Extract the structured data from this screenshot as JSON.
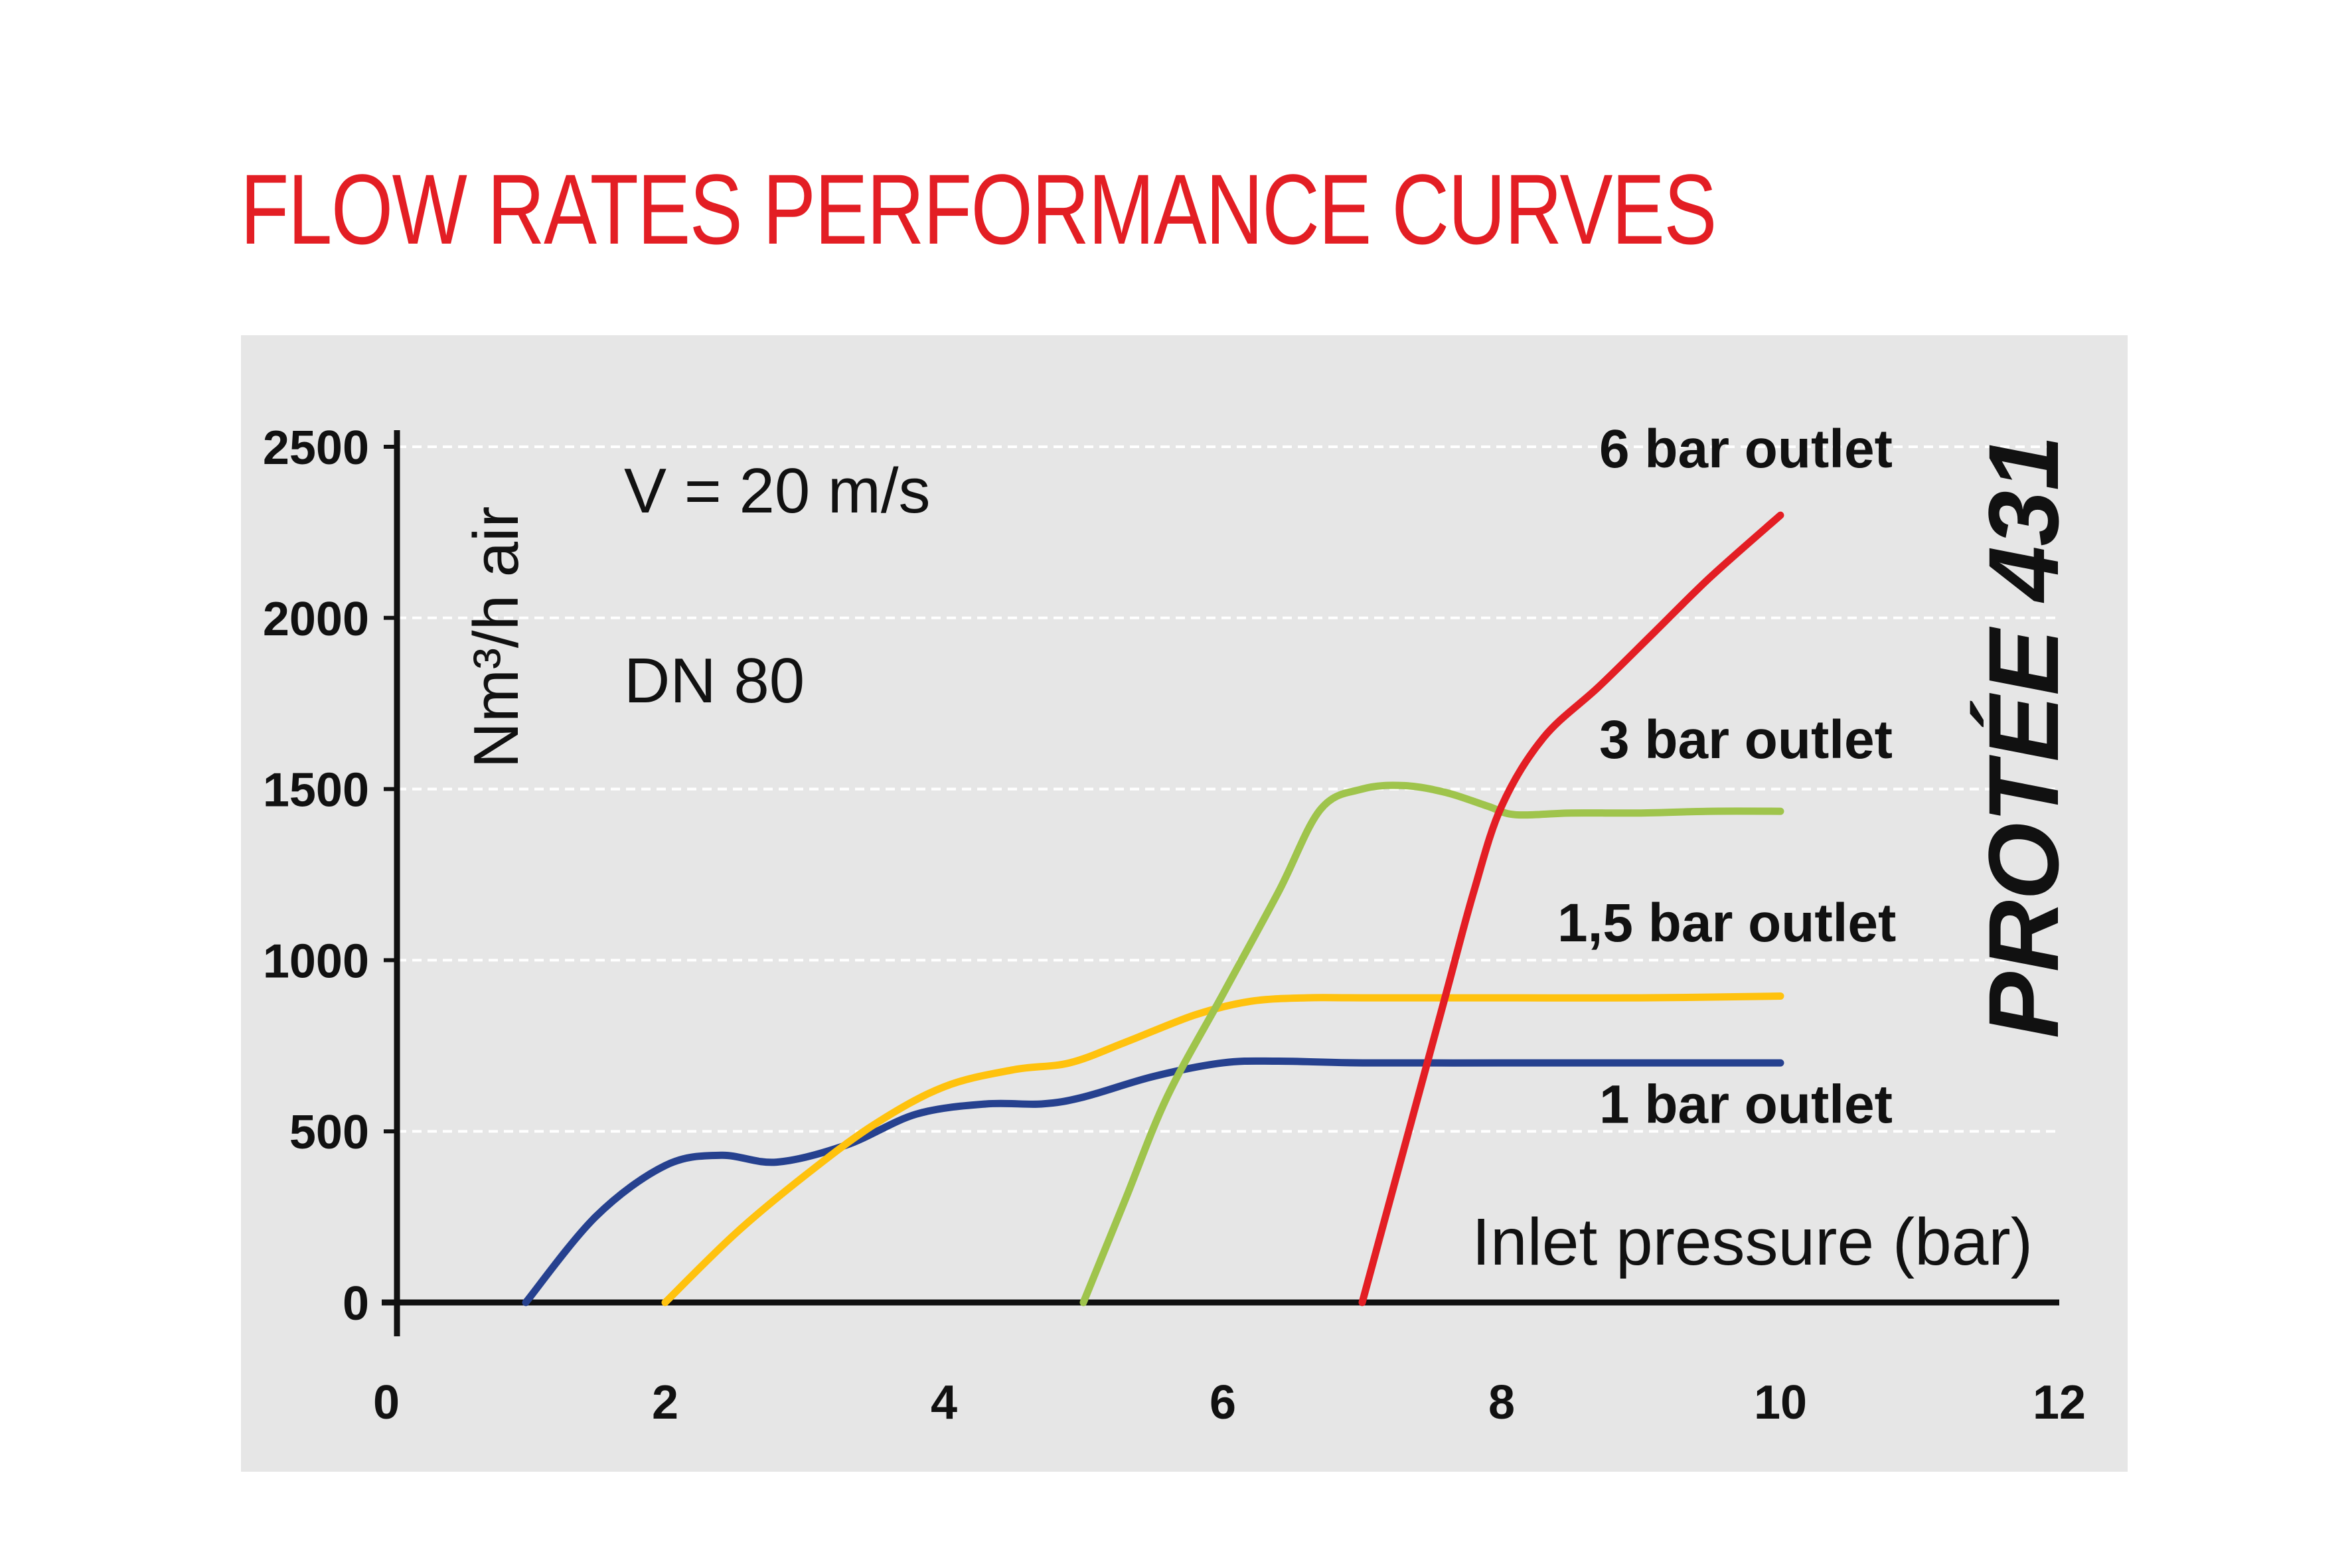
{
  "title": "FLOW RATES PERFORMANCE CURVES",
  "chart_data": {
    "type": "line",
    "title": "FLOW RATES PERFORMANCE CURVES",
    "xlabel": "Inlet pressure (bar)",
    "ylabel": "Nm³/h air",
    "xlim": [
      0,
      12
    ],
    "ylim": [
      0,
      2500
    ],
    "x_ticks": [
      0,
      2,
      4,
      6,
      8,
      10,
      12
    ],
    "y_ticks": [
      0,
      500,
      1000,
      1500,
      2000,
      2500
    ],
    "grid": "horizontal dashed",
    "background": "#e6e6e6",
    "annotations": [
      "V = 20 m/s",
      "DN 80"
    ],
    "model_label": "PROTÉE 431",
    "series": [
      {
        "name": "1 bar outlet",
        "color": "#26418f",
        "points": [
          [
            1.0,
            0
          ],
          [
            1.5,
            250
          ],
          [
            2.0,
            400
          ],
          [
            2.4,
            430
          ],
          [
            2.8,
            410
          ],
          [
            3.3,
            460
          ],
          [
            3.8,
            550
          ],
          [
            4.3,
            580
          ],
          [
            4.7,
            580
          ],
          [
            5.0,
            600
          ],
          [
            5.5,
            660
          ],
          [
            6.0,
            700
          ],
          [
            6.4,
            705
          ],
          [
            7.0,
            700
          ],
          [
            8.0,
            700
          ],
          [
            9.0,
            700
          ],
          [
            10.0,
            700
          ]
        ]
      },
      {
        "name": "1,5 bar outlet",
        "color": "#ffc20e",
        "points": [
          [
            2.0,
            0
          ],
          [
            2.5,
            200
          ],
          [
            3.0,
            370
          ],
          [
            3.5,
            520
          ],
          [
            4.0,
            630
          ],
          [
            4.5,
            680
          ],
          [
            4.9,
            700
          ],
          [
            5.3,
            760
          ],
          [
            5.8,
            840
          ],
          [
            6.2,
            880
          ],
          [
            6.6,
            890
          ],
          [
            7.0,
            890
          ],
          [
            8.0,
            890
          ],
          [
            9.0,
            890
          ],
          [
            10.0,
            895
          ]
        ]
      },
      {
        "name": "3 bar outlet",
        "color": "#9fc44c",
        "points": [
          [
            5.0,
            0
          ],
          [
            5.3,
            300
          ],
          [
            5.6,
            600
          ],
          [
            6.0,
            900
          ],
          [
            6.4,
            1200
          ],
          [
            6.7,
            1440
          ],
          [
            7.0,
            1500
          ],
          [
            7.3,
            1510
          ],
          [
            7.6,
            1490
          ],
          [
            7.9,
            1450
          ],
          [
            8.1,
            1425
          ],
          [
            8.5,
            1430
          ],
          [
            9.0,
            1430
          ],
          [
            9.5,
            1435
          ],
          [
            10.0,
            1435
          ]
        ]
      },
      {
        "name": "6 bar outlet",
        "color": "#e31e24",
        "points": [
          [
            7.0,
            0
          ],
          [
            7.3,
            450
          ],
          [
            7.6,
            900
          ],
          [
            7.8,
            1200
          ],
          [
            8.0,
            1450
          ],
          [
            8.3,
            1650
          ],
          [
            8.7,
            1800
          ],
          [
            9.1,
            1960
          ],
          [
            9.5,
            2120
          ],
          [
            10.0,
            2300
          ]
        ]
      }
    ],
    "series_labels": [
      {
        "text": "6 bar outlet",
        "x": 8.7,
        "y": 2440
      },
      {
        "text": "3 bar outlet",
        "x": 8.7,
        "y": 1590
      },
      {
        "text": "1,5 bar outlet",
        "x": 8.4,
        "y": 1055
      },
      {
        "text": "1 bar outlet",
        "x": 8.7,
        "y": 525
      }
    ]
  }
}
